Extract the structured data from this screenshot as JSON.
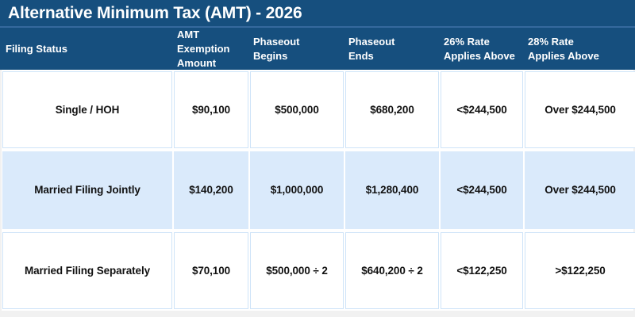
{
  "page": {
    "title": "Alternative Minimum Tax (AMT) - 2026"
  },
  "colors": {
    "header_bg": "#164F7E",
    "title_divider": "#35699D",
    "highlight_row_bg": "#DAEAFB",
    "cell_border": "#CFE4F8",
    "header_text": "#FFFFFF",
    "body_text": "#111111",
    "page_margin": "#F1F1F1"
  },
  "table": {
    "headers": [
      "Filing Status",
      "AMT\nExemption\nAmount",
      "Phaseout\nBegins",
      "Phaseout\nEnds",
      "26% Rate\nApplies Above",
      "28% Rate\nApplies Above"
    ],
    "rows": [
      {
        "cells": [
          "Single / HOH",
          "$90,100",
          "$500,000",
          "$680,200",
          "<$244,500",
          "Over $244,500"
        ]
      },
      {
        "cells": [
          "Married Filing Jointly",
          "$140,200",
          "$1,000,000",
          "$1,280,400",
          "<$244,500",
          "Over $244,500"
        ]
      },
      {
        "cells": [
          "Married Filing Separately",
          "$70,100",
          "$500,000 ÷ 2",
          "$640,200 ÷ 2",
          "<$122,250",
          ">$122,250"
        ]
      }
    ]
  },
  "chart_data": {
    "type": "table",
    "title": "Alternative Minimum Tax (AMT) - 2026",
    "columns": [
      "Filing Status",
      "AMT Exemption Amount",
      "Phaseout Begins",
      "Phaseout Ends",
      "26% Rate Applies Above",
      "28% Rate Applies Above"
    ],
    "rows": [
      [
        "Single / HOH",
        "$90,100",
        "$500,000",
        "$680,200",
        "<$244,500",
        "Over $244,500"
      ],
      [
        "Married Filing Jointly",
        "$140,200",
        "$1,000,000",
        "$1,280,400",
        "<$244,500",
        "Over $244,500"
      ],
      [
        "Married Filing Separately",
        "$70,100",
        "$500,000 ÷ 2",
        "$640,200 ÷ 2",
        "<$122,250",
        ">$122,250"
      ]
    ],
    "layout": {
      "highlighted_row_index": 1,
      "header_position": "top",
      "grid": true
    }
  }
}
